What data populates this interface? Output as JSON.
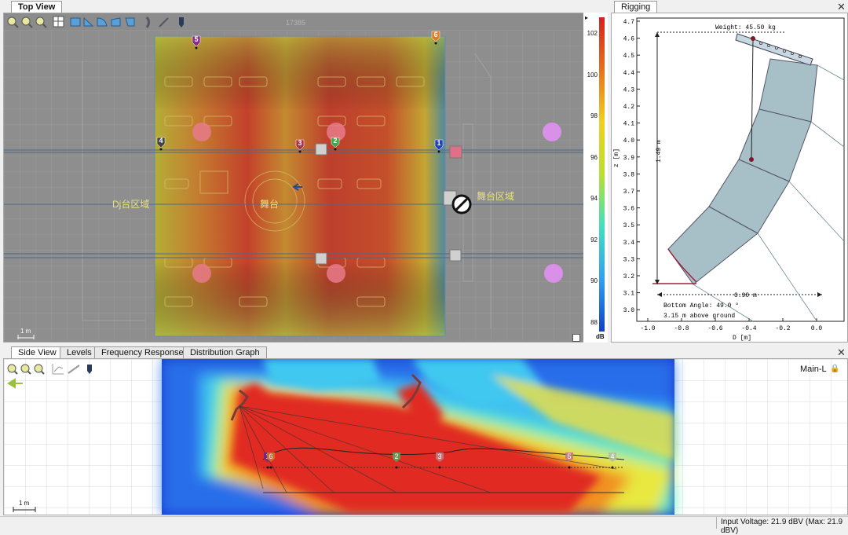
{
  "top_view": {
    "tab": "Top View",
    "scale_label": "1 m",
    "zone_left": "Dj台区域",
    "zone_center": "舞台",
    "zone_right": "舞台区域",
    "top_dim": "17385",
    "speakers": [
      {
        "id": "1",
        "color": "#1f3fc8"
      },
      {
        "id": "2",
        "color": "#3fa64a"
      },
      {
        "id": "3",
        "color": "#b03050"
      },
      {
        "id": "4",
        "color": "#444444"
      },
      {
        "id": "5",
        "color": "#8a2a8a"
      },
      {
        "id": "6",
        "color": "#e07b20"
      }
    ],
    "toolbar_icons": [
      "zoom-in-icon",
      "zoom-out-icon",
      "zoom-fit-icon",
      "grid-icon",
      "rect-icon",
      "shape-a-icon",
      "shape-b-icon",
      "shape-c-icon",
      "shape-d-icon",
      "array-icon",
      "line-icon",
      "speaker-icon"
    ]
  },
  "colorbar": {
    "unit": "dB",
    "ticks": [
      "102",
      "100",
      "98",
      "96",
      "94",
      "92",
      "90",
      "88"
    ],
    "gradient": [
      "#d62020",
      "#e8701a",
      "#f0d020",
      "#b8e030",
      "#40e0c0",
      "#30a0f0",
      "#1040c8"
    ]
  },
  "rigging": {
    "tab": "Rigging",
    "weight": "Weight: 45.50 kg",
    "dim_vertical": "1.49 m",
    "dim_horizontal": "0.90 m",
    "bottom_angle": "Bottom Angle: 49.0 °",
    "above_ground": "3.15 m above ground",
    "xlabel": "D [m]",
    "ylabel": "z [m]",
    "xticks": [
      "-1.0",
      "-0.8",
      "-0.6",
      "-0.4",
      "-0.2",
      "0.0"
    ],
    "yticks": [
      "4.7",
      "4.6",
      "4.5",
      "4.4",
      "4.3",
      "4.2",
      "4.1",
      "4.0",
      "3.9",
      "3.8",
      "3.7",
      "3.6",
      "3.5",
      "3.4",
      "3.3",
      "3.2",
      "3.1",
      "3.0"
    ]
  },
  "bottom": {
    "tabs": [
      "Side View",
      "Levels",
      "Frequency Response",
      "Distribution Graph"
    ],
    "channel": "Main-L",
    "scale_label": "1 m",
    "markers": [
      "1",
      "6",
      "2",
      "3",
      "5",
      "4"
    ]
  },
  "status": {
    "input_voltage": "Input Voltage: 21.9 dBV (Max: 21.9 dBV)"
  }
}
